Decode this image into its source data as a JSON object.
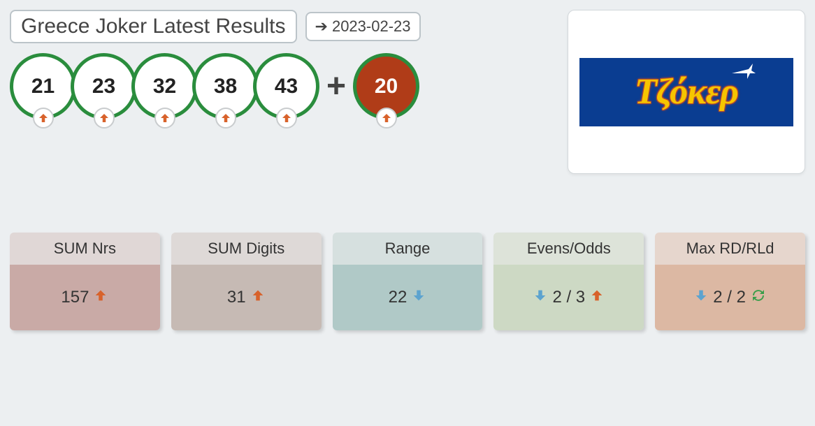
{
  "header": {
    "title": "Greece Joker Latest Results",
    "date": "2023-02-23"
  },
  "balls": {
    "main": [
      {
        "value": "21",
        "trend": "up"
      },
      {
        "value": "23",
        "trend": "up"
      },
      {
        "value": "32",
        "trend": "up"
      },
      {
        "value": "38",
        "trend": "up"
      },
      {
        "value": "43",
        "trend": "up"
      }
    ],
    "bonus": {
      "value": "20",
      "trend": "up"
    },
    "ball_border_color": "#2a8d3d",
    "ball_bg": "#ffffff",
    "bonus_bg": "#b03c18",
    "trend_up_color": "#d8622b",
    "trend_down_color": "#5ca3cf",
    "trend_sync_color": "#3a9e4a"
  },
  "logo": {
    "text": "Τζόκερ",
    "bg_color": "#0a3d91",
    "text_color": "#f6c500"
  },
  "stats": [
    {
      "label": "SUM Nrs",
      "header_bg": "#e0d7d6",
      "body_bg": "#c9aaa6",
      "items": [
        {
          "type": "text",
          "value": "157"
        },
        {
          "type": "icon",
          "icon": "up"
        }
      ]
    },
    {
      "label": "SUM Digits",
      "header_bg": "#ded9d7",
      "body_bg": "#c6bab4",
      "items": [
        {
          "type": "text",
          "value": "31"
        },
        {
          "type": "icon",
          "icon": "up"
        }
      ]
    },
    {
      "label": "Range",
      "header_bg": "#d6e0df",
      "body_bg": "#b0c9c7",
      "items": [
        {
          "type": "text",
          "value": "22"
        },
        {
          "type": "icon",
          "icon": "down"
        }
      ]
    },
    {
      "label": "Evens/Odds",
      "header_bg": "#dde3d9",
      "body_bg": "#cdd9c4",
      "items": [
        {
          "type": "icon",
          "icon": "down"
        },
        {
          "type": "text",
          "value": "2 / 3"
        },
        {
          "type": "icon",
          "icon": "up"
        }
      ]
    },
    {
      "label": "Max RD/RLd",
      "header_bg": "#e6d6cd",
      "body_bg": "#dcb8a3",
      "items": [
        {
          "type": "icon",
          "icon": "down"
        },
        {
          "type": "text",
          "value": "2 / 2"
        },
        {
          "type": "icon",
          "icon": "sync"
        }
      ]
    }
  ]
}
